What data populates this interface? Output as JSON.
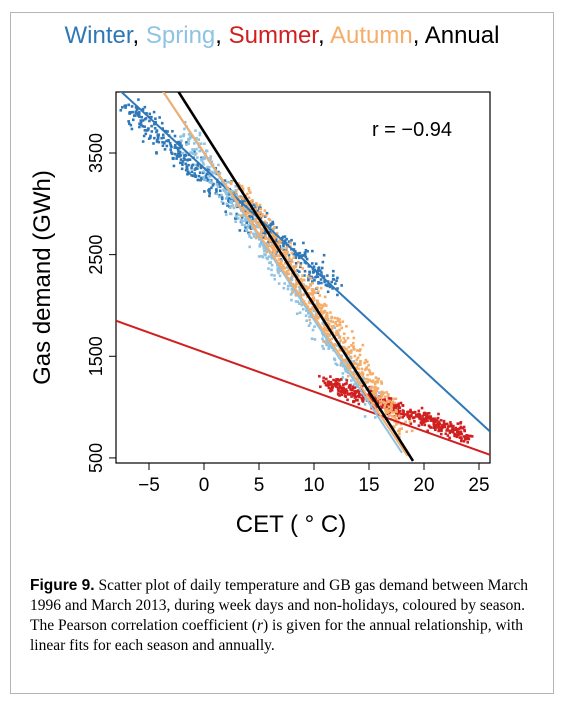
{
  "chart_data": {
    "type": "scatter",
    "title_parts": [
      "Winter",
      ", ",
      "Spring",
      ", ",
      "Summer",
      ", ",
      "Autumn",
      ", ",
      "Annual"
    ],
    "title_colors": [
      "#2f78b7",
      "#000000",
      "#8fc3e3",
      "#000000",
      "#d11f1f",
      "#000000",
      "#f5ad6a",
      "#000000",
      "#000000"
    ],
    "xlabel": "CET ( ° C)",
    "ylabel": "Gas demand (GWh)",
    "xlim": [
      -8,
      26
    ],
    "ylim": [
      450,
      4100
    ],
    "xticks": [
      -5,
      0,
      5,
      10,
      15,
      20,
      25
    ],
    "xtick_labels": [
      "−5",
      "0",
      "5",
      "10",
      "15",
      "20",
      "25"
    ],
    "yticks": [
      500,
      1500,
      2500,
      3500
    ],
    "ytick_labels": [
      "500",
      "1500",
      "2500",
      "3500"
    ],
    "grid": false,
    "annotation": "r = −0.94",
    "series": [
      {
        "name": "Winter",
        "color": "#2f78b7",
        "x_center": [
          -7,
          12
        ],
        "y_fit": [
          3950,
          2150
        ],
        "spread": [
          1.6,
          230
        ],
        "n": 520
      },
      {
        "name": "Spring",
        "color": "#8fc3e3",
        "x_center": [
          -2,
          16
        ],
        "y_fit": [
          3750,
          950
        ],
        "spread": [
          1.5,
          220
        ],
        "n": 460
      },
      {
        "name": "Summer",
        "color": "#d11f1f",
        "x_center": [
          11,
          24
        ],
        "y_fit": [
          1250,
          720
        ],
        "spread": [
          1.2,
          120
        ],
        "n": 460
      },
      {
        "name": "Autumn",
        "color": "#f5ad6a",
        "x_center": [
          3,
          18
        ],
        "y_fit": [
          3150,
          800
        ],
        "spread": [
          1.6,
          200
        ],
        "n": 620
      }
    ],
    "fit_lines": [
      {
        "name": "Winter",
        "color": "#2f78b7",
        "x": [
          -8,
          26
        ],
        "y": [
          4150,
          760
        ]
      },
      {
        "name": "Summer",
        "color": "#d11f1f",
        "x": [
          -8,
          26
        ],
        "y": [
          1850,
          530
        ]
      },
      {
        "name": "Spring",
        "color": "#8fc3e3",
        "x": [
          -4,
          18
        ],
        "y": [
          4150,
          550
        ]
      },
      {
        "name": "Autumn",
        "color": "#f5ad6a",
        "x": [
          -4,
          18.5
        ],
        "y": [
          4150,
          520
        ]
      },
      {
        "name": "Annual",
        "color": "#000000",
        "x": [
          -2.6,
          19
        ],
        "y": [
          4150,
          470
        ]
      }
    ]
  },
  "caption": {
    "label": "Figure 9.",
    "text_1": " Scatter plot of daily temperature and GB gas demand between March 1996 and March 2013, during week days and non-holidays, coloured by season. The Pearson correlation coefficient (",
    "r": "r",
    "text_2": ") is given for the annual relationship, with linear fits for each season and annually."
  }
}
